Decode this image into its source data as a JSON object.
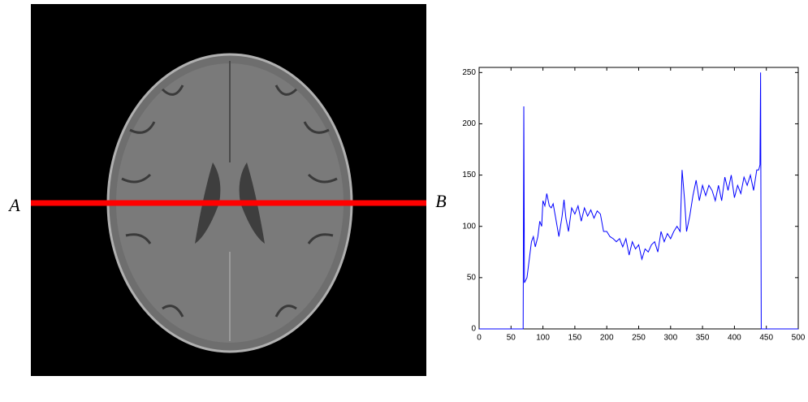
{
  "chart_data": {
    "type": "line",
    "annotations": [
      "A",
      "B"
    ],
    "x": [
      0,
      69,
      70,
      71,
      75,
      78,
      82,
      85,
      88,
      92,
      95,
      98,
      100,
      103,
      106,
      110,
      113,
      116,
      120,
      125,
      130,
      133,
      136,
      140,
      145,
      150,
      155,
      160,
      165,
      170,
      175,
      180,
      185,
      190,
      195,
      200,
      205,
      210,
      215,
      220,
      225,
      230,
      235,
      240,
      245,
      250,
      255,
      260,
      265,
      270,
      275,
      280,
      285,
      290,
      295,
      300,
      305,
      310,
      315,
      318,
      322,
      325,
      330,
      335,
      340,
      345,
      350,
      355,
      360,
      365,
      370,
      375,
      380,
      385,
      390,
      395,
      400,
      405,
      410,
      415,
      420,
      425,
      430,
      435,
      438,
      440,
      441,
      442,
      500
    ],
    "values": [
      0,
      0,
      217,
      45,
      50,
      65,
      85,
      90,
      80,
      90,
      105,
      100,
      125,
      120,
      132,
      120,
      118,
      122,
      108,
      90,
      110,
      126,
      108,
      95,
      118,
      112,
      120,
      105,
      118,
      110,
      116,
      108,
      115,
      112,
      95,
      95,
      90,
      88,
      85,
      88,
      80,
      88,
      72,
      85,
      78,
      82,
      68,
      78,
      75,
      82,
      85,
      75,
      95,
      85,
      93,
      88,
      95,
      100,
      95,
      155,
      125,
      95,
      110,
      130,
      145,
      125,
      140,
      130,
      140,
      135,
      125,
      140,
      125,
      148,
      135,
      150,
      128,
      140,
      132,
      148,
      140,
      150,
      135,
      155,
      155,
      160,
      250,
      0,
      0
    ],
    "color": "#0000ff",
    "xlim": [
      0,
      500
    ],
    "ylim": [
      0,
      255
    ],
    "xticks": [
      0,
      50,
      100,
      150,
      200,
      250,
      300,
      350,
      400,
      450,
      500
    ],
    "yticks": [
      0,
      50,
      100,
      150,
      200,
      250
    ]
  }
}
